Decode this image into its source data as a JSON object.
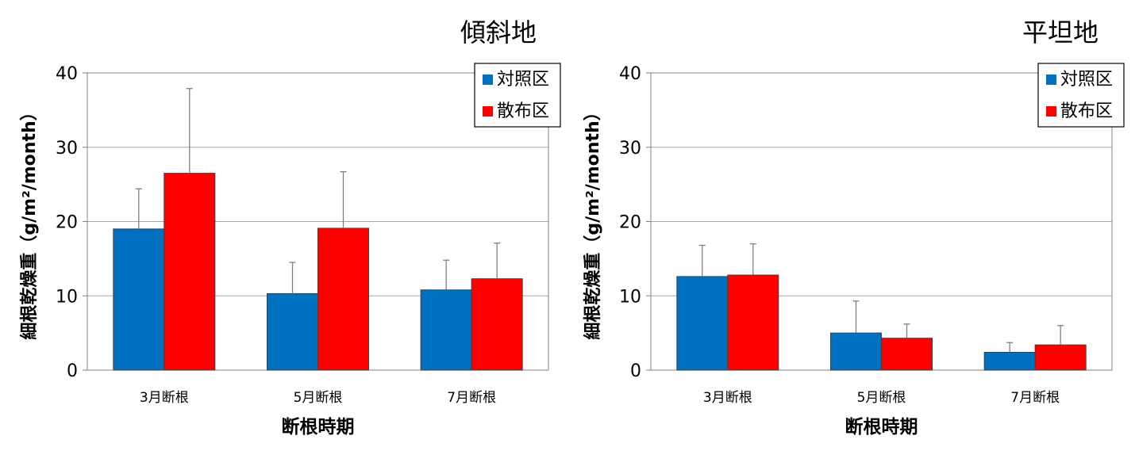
{
  "colors": {
    "control": "#0070c0",
    "spray": "#ff0000",
    "grid": "#a6a6a6",
    "axis": "#808080",
    "error": "#808080"
  },
  "chart_data": [
    {
      "type": "bar",
      "title": "傾斜地",
      "xlabel": "断根時期",
      "ylabel": "細根乾燥重（g/m²/month）",
      "ylim": [
        0,
        40
      ],
      "yticks": [
        0,
        10,
        20,
        30,
        40
      ],
      "grid": true,
      "legend": "top-right",
      "categories": [
        "3月断根",
        "5月断根",
        "7月断根"
      ],
      "series": [
        {
          "name": "対照区",
          "values": [
            19.0,
            10.3,
            10.8
          ],
          "errors": [
            5.4,
            4.2,
            4.0
          ]
        },
        {
          "name": "散布区",
          "values": [
            26.5,
            19.1,
            12.3
          ],
          "errors": [
            11.4,
            7.6,
            4.8
          ]
        }
      ]
    },
    {
      "type": "bar",
      "title": "平坦地",
      "xlabel": "断根時期",
      "ylabel": "細根乾燥重（g/m²/month）",
      "ylim": [
        0,
        40
      ],
      "yticks": [
        0,
        10,
        20,
        30,
        40
      ],
      "grid": true,
      "legend": "top-right",
      "categories": [
        "3月断根",
        "5月断根",
        "7月断根"
      ],
      "series": [
        {
          "name": "対照区",
          "values": [
            12.6,
            5.0,
            2.4
          ],
          "errors": [
            4.2,
            4.3,
            1.3
          ]
        },
        {
          "name": "散布区",
          "values": [
            12.8,
            4.3,
            3.4
          ],
          "errors": [
            4.2,
            1.9,
            2.6
          ]
        }
      ]
    }
  ]
}
